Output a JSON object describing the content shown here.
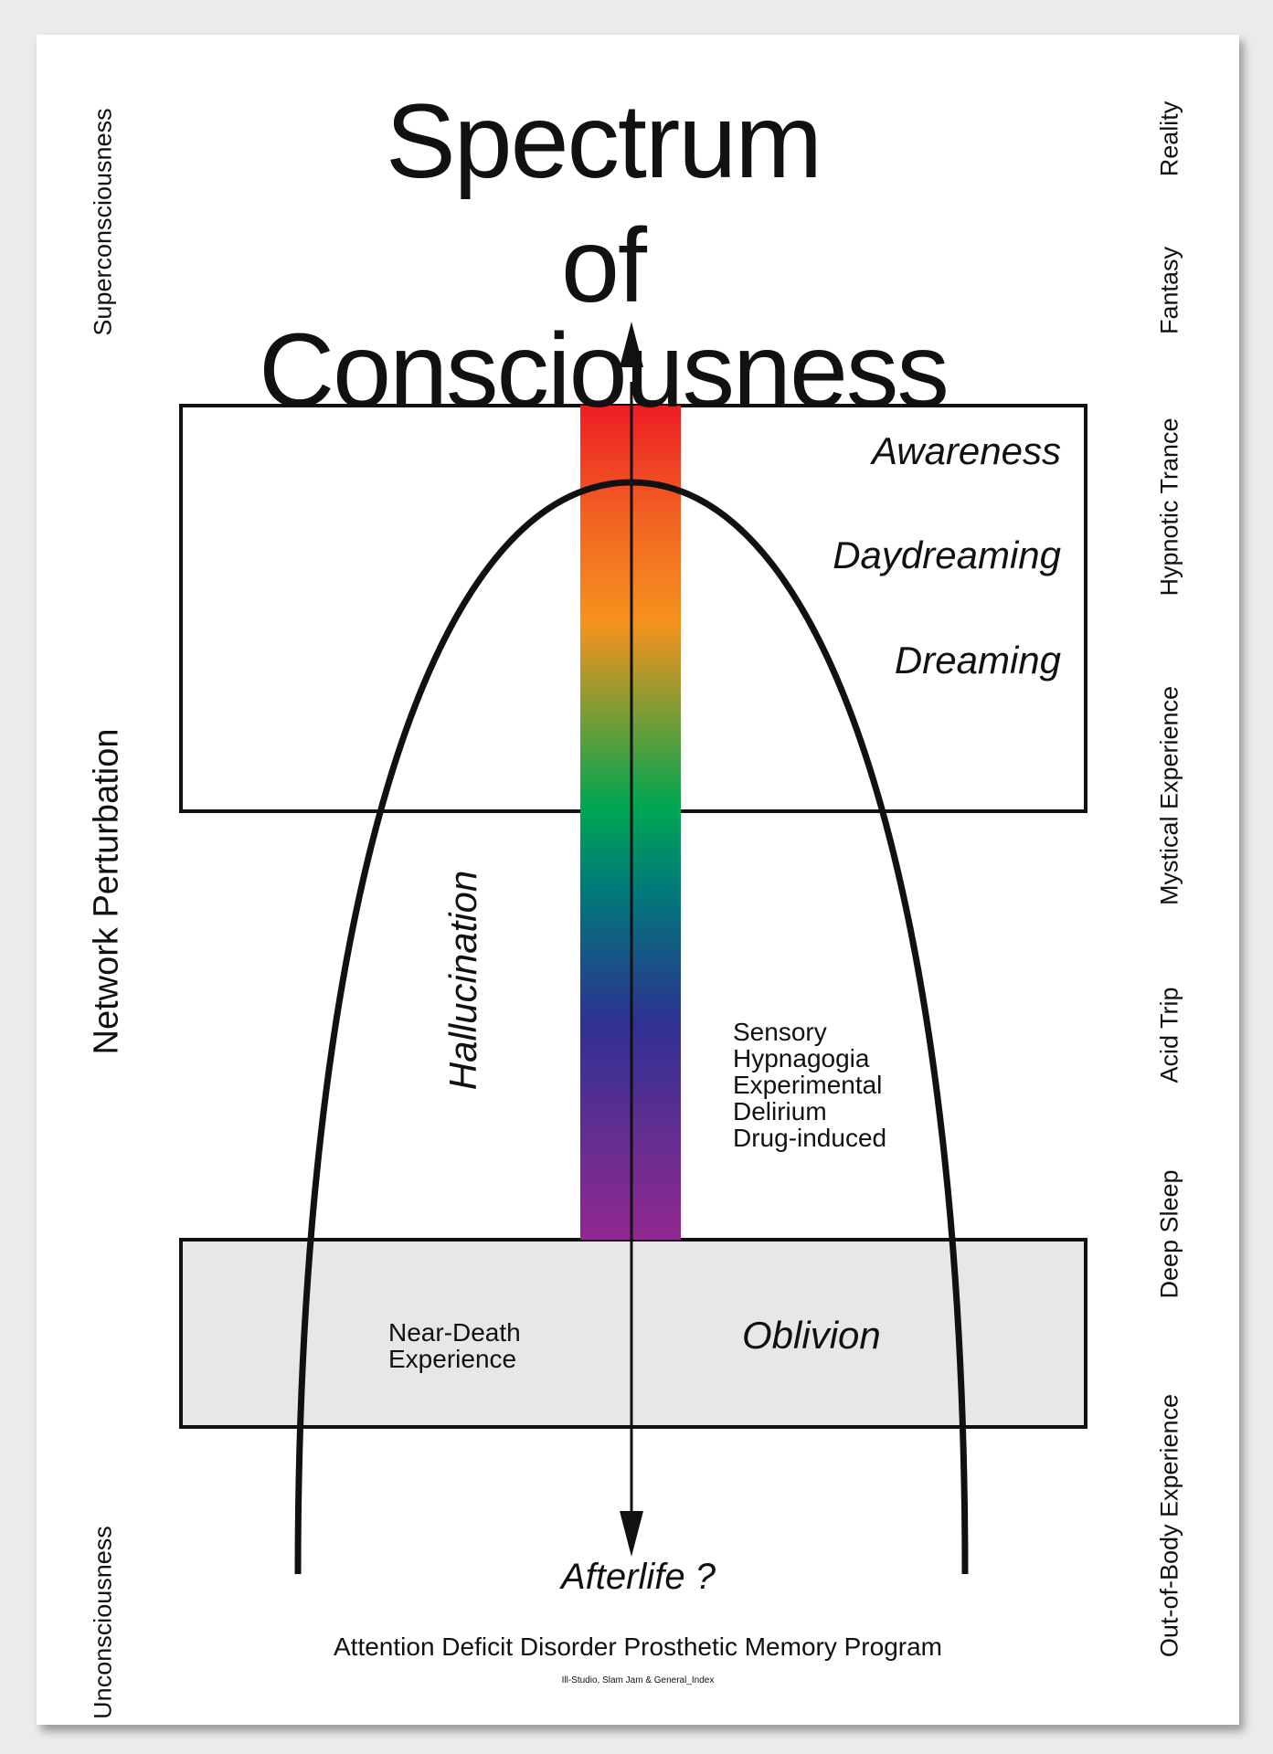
{
  "title": {
    "line1": "Spectrum",
    "line2": "of Consciousness"
  },
  "left_labels": {
    "top": "Superconsciousness",
    "middle": "Network Perturbation",
    "bottom": "Unconsciousness"
  },
  "right_labels": [
    "Reality",
    "Fantasy",
    "Hypnotic Trance",
    "Mystical Experience",
    "Acid Trip",
    "Deep Sleep",
    "Out-of-Body Experience"
  ],
  "upper_box": {
    "states": [
      "Awareness",
      "Daydreaming",
      "Dreaming"
    ]
  },
  "hallucination": {
    "label": "Hallucination",
    "types": [
      "Sensory",
      "Hypnagogia",
      "Experimental",
      "Delirium",
      "Drug-induced"
    ]
  },
  "lower_box": {
    "left": {
      "line1": "Near-Death",
      "line2": "Experience"
    },
    "right": "Oblivion"
  },
  "bottom_label": "Afterlife ?",
  "footer": {
    "program": "Attention Deficit Disorder Prosthetic Memory Program",
    "credits": "Ill-Studio, Slam Jam & General_Index"
  },
  "colors": {
    "spectrum": [
      "#ee1c25",
      "#f7921e",
      "#00a651",
      "#2e3192",
      "#92278f"
    ],
    "lower_box_fill": "#e6e7e8",
    "ink": "#111111"
  }
}
